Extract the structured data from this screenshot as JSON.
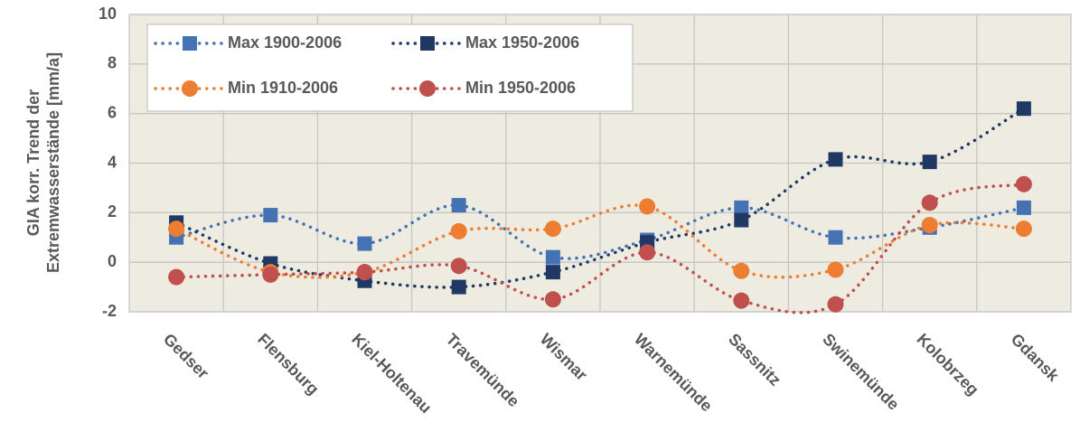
{
  "chart_data": {
    "type": "line",
    "ylabel": [
      "GIA korr. Trend der",
      "Extremwasserstände [mm/a]"
    ],
    "categories": [
      "Gedser",
      "Flensburg",
      "Kiel-Holtenau",
      "Travemünde",
      "Wismar",
      "Warnemünde",
      "Sassnitz",
      "Swinemünde",
      "Kolobrzeg",
      "Gdansk"
    ],
    "series": [
      {
        "name": "Max 1900-2006",
        "color": "#4472b4",
        "marker": "square",
        "values": [
          1.0,
          1.9,
          0.75,
          2.3,
          0.2,
          0.9,
          2.2,
          1.0,
          1.4,
          2.2
        ]
      },
      {
        "name": "Max 1950-2006",
        "color": "#203864",
        "marker": "square",
        "values": [
          1.6,
          -0.05,
          -0.75,
          -1.0,
          -0.4,
          0.8,
          1.7,
          4.15,
          4.05,
          6.2
        ]
      },
      {
        "name": "Min 1910-2006",
        "color": "#ed7d31",
        "marker": "circle",
        "values": [
          1.35,
          -0.4,
          -0.4,
          1.25,
          1.35,
          2.25,
          -0.35,
          -0.3,
          1.5,
          1.35
        ]
      },
      {
        "name": "Min 1950-2006",
        "color": "#c0504d",
        "marker": "circle",
        "values": [
          -0.6,
          -0.5,
          -0.4,
          -0.15,
          -1.5,
          0.4,
          -1.55,
          -1.7,
          2.4,
          3.15
        ]
      }
    ],
    "ylim": [
      -2,
      10
    ],
    "yticks": [
      -2,
      0,
      2,
      4,
      6,
      8,
      10
    ],
    "grid": true,
    "smooth": true,
    "legend": "upper left"
  }
}
